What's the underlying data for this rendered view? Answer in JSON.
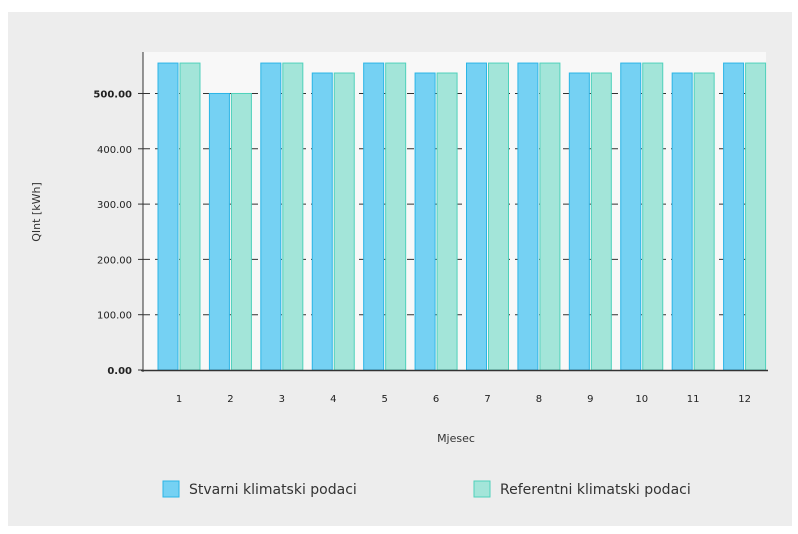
{
  "chart_data": {
    "type": "bar",
    "title": "",
    "xlabel": "Mjesec",
    "ylabel": "QInt [kWh]",
    "categories": [
      "1",
      "2",
      "3",
      "4",
      "5",
      "6",
      "7",
      "8",
      "9",
      "10",
      "11",
      "12"
    ],
    "series": [
      {
        "name": "Stvarni klimatski podaci",
        "color": "#75d1f3",
        "stroke": "#2bb5e6",
        "values": [
          555,
          500,
          555,
          537,
          555,
          537,
          555,
          555,
          537,
          555,
          537,
          555
        ]
      },
      {
        "name": "Referentni klimatski podaci",
        "color": "#a3e5d9",
        "stroke": "#4fd1bb",
        "values": [
          555,
          500,
          555,
          537,
          555,
          537,
          555,
          555,
          537,
          555,
          537,
          555
        ]
      }
    ],
    "yticks": [
      "0.00",
      "100.00",
      "200.00",
      "300.00",
      "400.00",
      "500.00"
    ],
    "ytick_values": [
      0,
      100,
      200,
      300,
      400,
      500
    ],
    "ylim": [
      0,
      575
    ],
    "grid": true,
    "legend_position": "bottom"
  }
}
